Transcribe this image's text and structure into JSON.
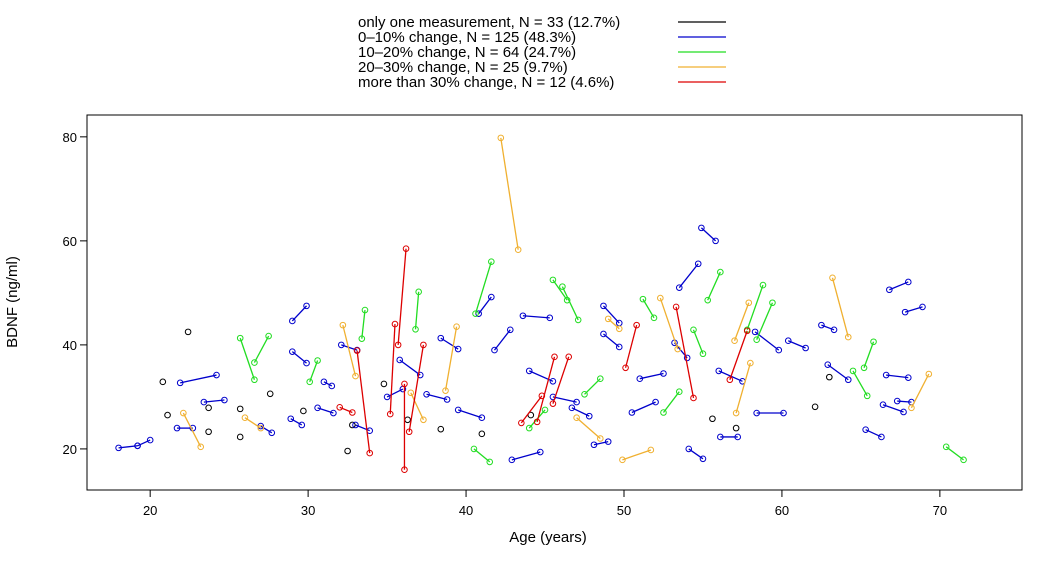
{
  "chart_data": {
    "type": "scatter",
    "title": "",
    "xlabel": "Age (years)",
    "ylabel": "BDNF (ng/ml)",
    "xlim": [
      16,
      75.2
    ],
    "ylim": [
      12.1,
      84.2
    ],
    "xticks": [
      20,
      30,
      40,
      50,
      60,
      70
    ],
    "yticks": [
      20,
      40,
      60,
      80
    ],
    "grid": false,
    "legend_position": "top-center-outside",
    "series": [
      {
        "name": "only one measurement, N = 33 (12.7%)",
        "color": "#000000",
        "points": [
          [
            20.8,
            32.9
          ],
          [
            21.1,
            26.5
          ],
          [
            22.4,
            42.5
          ],
          [
            23.7,
            27.9
          ],
          [
            23.7,
            23.3
          ],
          [
            25.7,
            27.7
          ],
          [
            25.7,
            22.3
          ],
          [
            27.6,
            30.6
          ],
          [
            29.7,
            27.3
          ],
          [
            32.5,
            19.6
          ],
          [
            32.8,
            24.6
          ],
          [
            34.8,
            32.5
          ],
          [
            36.3,
            25.6
          ],
          [
            38.4,
            23.8
          ],
          [
            41.0,
            22.9
          ],
          [
            44.1,
            26.5
          ],
          [
            55.6,
            25.8
          ],
          [
            57.1,
            24.0
          ],
          [
            62.1,
            28.1
          ],
          [
            63.0,
            33.8
          ]
        ],
        "segments": []
      },
      {
        "name": "0–10% change, N = 125 (48.3%)",
        "color": "#0000cc",
        "segments": [
          [
            18.0,
            20.2,
            19.2,
            20.6
          ],
          [
            19.2,
            20.6,
            20.0,
            21.7
          ],
          [
            21.9,
            32.7,
            24.2,
            34.2
          ],
          [
            21.7,
            24.0,
            22.7,
            24.0
          ],
          [
            23.4,
            29.0,
            24.7,
            29.4
          ],
          [
            29.0,
            38.7,
            29.9,
            36.5
          ],
          [
            29.0,
            44.6,
            29.9,
            47.5
          ],
          [
            28.9,
            25.8,
            29.6,
            24.6
          ],
          [
            27.0,
            24.4,
            27.7,
            23.1
          ],
          [
            32.1,
            40.0,
            33.1,
            39.0
          ],
          [
            31.0,
            32.9,
            31.5,
            32.1
          ],
          [
            30.6,
            27.9,
            31.6,
            26.9
          ],
          [
            33.0,
            24.6,
            33.9,
            23.5
          ],
          [
            35.8,
            37.1,
            37.1,
            34.2
          ],
          [
            38.4,
            41.3,
            39.5,
            39.2
          ],
          [
            40.8,
            46.0,
            41.6,
            49.2
          ],
          [
            41.8,
            39.0,
            42.8,
            42.9
          ],
          [
            42.9,
            17.9,
            44.7,
            19.4
          ],
          [
            43.6,
            45.6,
            45.3,
            45.2
          ],
          [
            46.7,
            27.9,
            47.8,
            26.3
          ],
          [
            48.7,
            42.1,
            49.7,
            39.6
          ],
          [
            48.7,
            47.5,
            49.7,
            44.2
          ],
          [
            48.1,
            20.8,
            49.0,
            21.4
          ],
          [
            53.2,
            40.4,
            54.0,
            37.5
          ],
          [
            53.5,
            51.0,
            54.7,
            55.6
          ],
          [
            54.9,
            62.5,
            55.8,
            60.0
          ],
          [
            54.1,
            20.0,
            55.0,
            18.1
          ],
          [
            56.1,
            22.3,
            57.2,
            22.3
          ],
          [
            58.4,
            26.9,
            60.1,
            26.9
          ],
          [
            58.3,
            42.5,
            59.8,
            39.0
          ],
          [
            60.4,
            40.8,
            61.5,
            39.4
          ],
          [
            62.9,
            36.2,
            64.2,
            33.3
          ],
          [
            62.5,
            43.8,
            63.3,
            42.9
          ],
          [
            65.3,
            23.7,
            66.3,
            22.3
          ],
          [
            66.8,
            50.6,
            68.0,
            52.1
          ],
          [
            67.8,
            46.3,
            68.9,
            47.3
          ],
          [
            66.6,
            34.2,
            68.0,
            33.7
          ],
          [
            66.4,
            28.5,
            67.7,
            27.1
          ],
          [
            67.3,
            29.2,
            68.2,
            29.0
          ],
          [
            35.0,
            30.0,
            36.0,
            31.5
          ],
          [
            44.0,
            35.0,
            45.5,
            33.0
          ],
          [
            45.5,
            30.0,
            47.0,
            29.0
          ],
          [
            50.5,
            27.0,
            52.0,
            29.0
          ],
          [
            51.0,
            33.5,
            52.5,
            34.5
          ],
          [
            39.5,
            27.5,
            41.0,
            26.0
          ],
          [
            37.5,
            30.5,
            38.8,
            29.5
          ],
          [
            56.0,
            35.0,
            57.5,
            33.0
          ]
        ]
      },
      {
        "name": "10–20% change, N = 64 (24.7%)",
        "color": "#22dd22",
        "segments": [
          [
            25.7,
            41.3,
            26.6,
            33.3
          ],
          [
            26.6,
            36.6,
            27.5,
            41.7
          ],
          [
            30.1,
            32.9,
            30.6,
            37.0
          ],
          [
            33.4,
            41.2,
            33.6,
            46.7
          ],
          [
            37.0,
            50.2,
            36.8,
            43.0
          ],
          [
            41.6,
            56.0,
            40.6,
            46.0
          ],
          [
            45.5,
            52.5,
            46.4,
            48.6
          ],
          [
            46.1,
            51.2,
            47.1,
            44.8
          ],
          [
            51.2,
            48.8,
            51.9,
            45.2
          ],
          [
            54.4,
            42.9,
            55.0,
            38.3
          ],
          [
            56.1,
            54.0,
            55.3,
            48.6
          ],
          [
            58.8,
            51.5,
            57.8,
            42.9
          ],
          [
            59.4,
            48.1,
            58.4,
            41.0
          ],
          [
            70.4,
            20.4,
            71.5,
            17.9
          ],
          [
            65.8,
            40.6,
            65.2,
            35.6
          ],
          [
            64.5,
            35.0,
            65.4,
            30.2
          ],
          [
            40.5,
            20.0,
            41.5,
            17.5
          ],
          [
            44.0,
            24.0,
            45.0,
            27.5
          ],
          [
            47.5,
            30.5,
            48.5,
            33.5
          ],
          [
            52.5,
            27.0,
            53.5,
            31.0
          ]
        ]
      },
      {
        "name": "20–30% change, N = 25 (9.7%)",
        "color": "#f0b030",
        "segments": [
          [
            42.2,
            79.8,
            43.3,
            58.3
          ],
          [
            22.1,
            26.9,
            23.2,
            20.4
          ],
          [
            32.2,
            43.8,
            33.0,
            34.0
          ],
          [
            36.5,
            30.8,
            37.3,
            25.6
          ],
          [
            39.4,
            43.5,
            38.7,
            31.2
          ],
          [
            49.0,
            45.0,
            49.7,
            43.1
          ],
          [
            49.9,
            17.9,
            51.7,
            19.8
          ],
          [
            52.3,
            49.0,
            53.4,
            39.2
          ],
          [
            63.2,
            52.9,
            64.2,
            41.5
          ],
          [
            68.2,
            27.9,
            69.3,
            34.4
          ],
          [
            58.0,
            36.5,
            57.1,
            26.9
          ],
          [
            57.9,
            48.1,
            57.0,
            40.8
          ],
          [
            26.0,
            26.0,
            27.0,
            24.0
          ],
          [
            47.0,
            26.0,
            48.5,
            22.0
          ]
        ]
      },
      {
        "name": "more than 30% change, N = 12 (4.6%)",
        "color": "#dd0000",
        "segments": [
          [
            36.2,
            58.5,
            35.7,
            40.0
          ],
          [
            36.1,
            32.5,
            36.1,
            16.0
          ],
          [
            35.5,
            44.0,
            35.2,
            26.7
          ],
          [
            37.3,
            40.0,
            36.4,
            23.3
          ],
          [
            33.1,
            38.9,
            33.9,
            19.2
          ],
          [
            45.6,
            37.7,
            44.5,
            25.2
          ],
          [
            53.3,
            47.3,
            54.4,
            29.8
          ],
          [
            57.8,
            42.7,
            56.7,
            33.3
          ],
          [
            50.8,
            43.8,
            50.1,
            35.6
          ],
          [
            43.5,
            25.0,
            44.8,
            30.2
          ],
          [
            46.5,
            37.7,
            45.5,
            28.7
          ],
          [
            32.0,
            28.0,
            32.8,
            27.0
          ]
        ]
      }
    ]
  }
}
